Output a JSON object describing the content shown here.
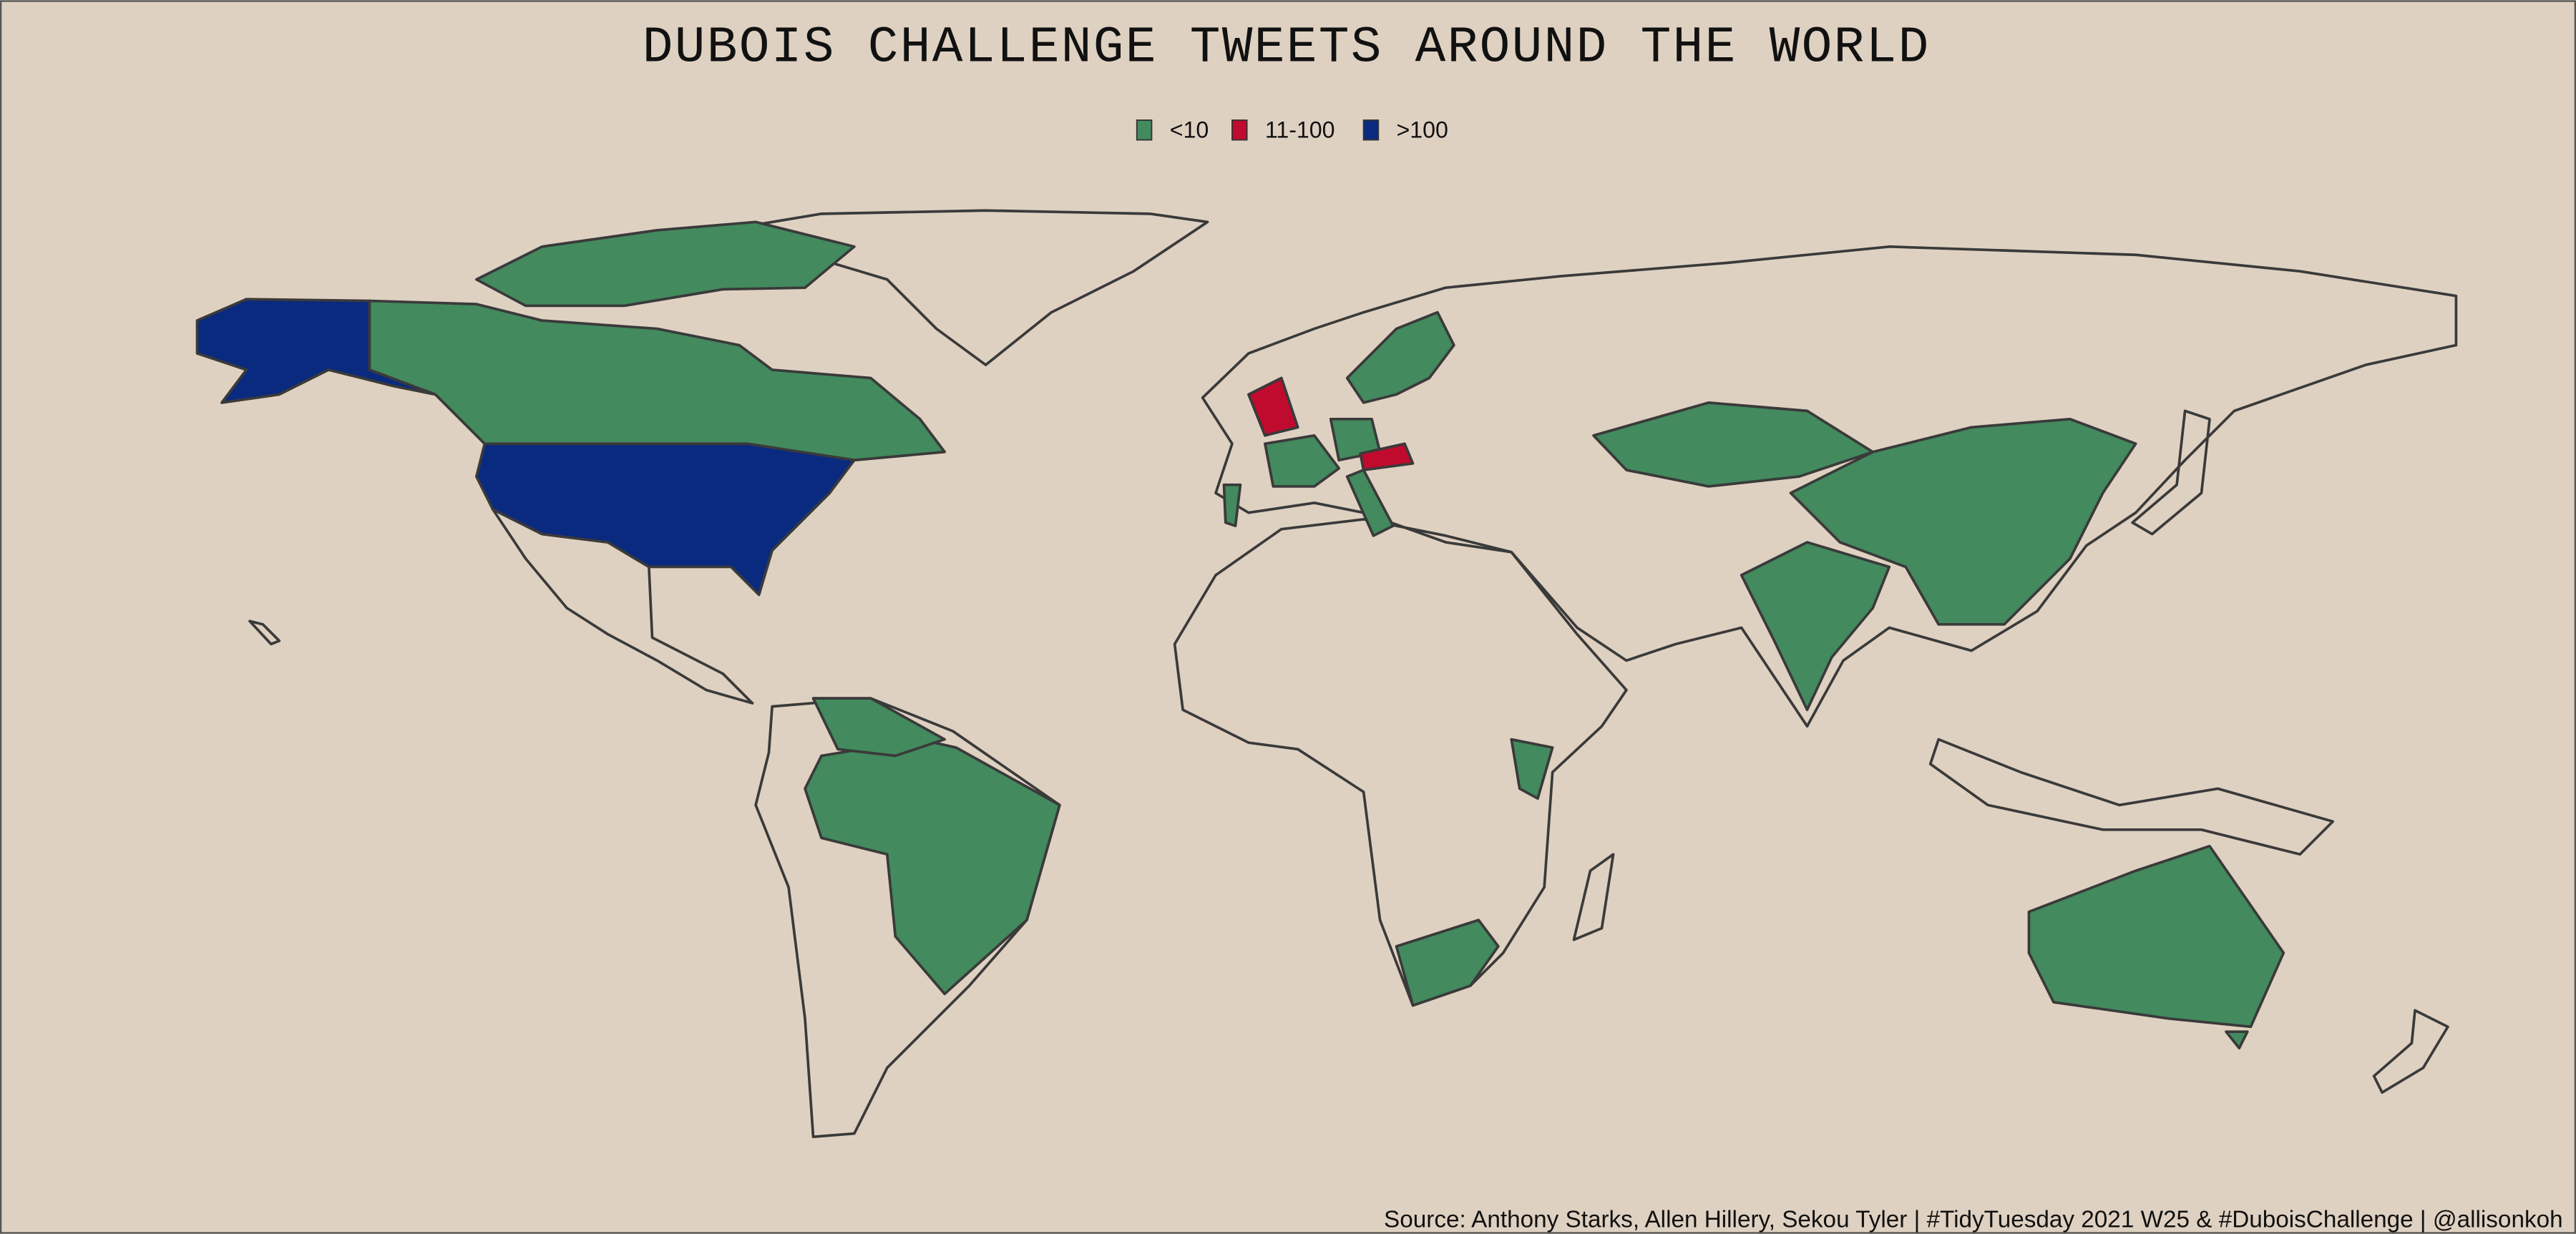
{
  "title": "DUBOIS CHALLENGE TWEETS AROUND THE WORLD",
  "legend": [
    {
      "label": "<10",
      "color": "#438a5e"
    },
    {
      "label": "11-100",
      "color": "#c00a2e"
    },
    {
      "label": ">100",
      "color": "#0a2a80"
    }
  ],
  "caption": "Source: Anthony Starks, Allen Hillery, Sekou Tyler | #TidyTuesday 2021 W25 & #DuboisChallenge | @allisonkoh"
}
